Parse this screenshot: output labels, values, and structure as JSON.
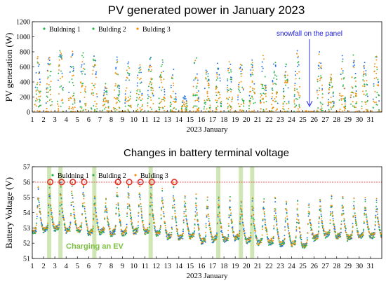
{
  "chart_data": [
    {
      "type": "scatter",
      "title": "PV generated power in January 2023",
      "xlabel": "2023 January",
      "ylabel": "PV generation (W)",
      "xlim": [
        1,
        32
      ],
      "ylim": [
        0,
        1200
      ],
      "yticks": [
        0,
        200,
        400,
        600,
        800,
        1000,
        1200
      ],
      "xticks": [
        1,
        2,
        3,
        4,
        5,
        6,
        7,
        8,
        9,
        10,
        11,
        12,
        13,
        14,
        15,
        16,
        17,
        18,
        19,
        20,
        21,
        22,
        23,
        24,
        25,
        26,
        27,
        28,
        29,
        30,
        31
      ],
      "grid": false,
      "legend": "top-left",
      "series": [
        {
          "name": "Buldning 1",
          "color": "#1f6fe0"
        },
        {
          "name": "Bulding 2",
          "color": "#2db34a"
        },
        {
          "name": "Bulding 3",
          "color": "#f2900a"
        }
      ],
      "daily_peak_W": [
        {
          "day": 1,
          "peak": 770
        },
        {
          "day": 2,
          "peak": 760
        },
        {
          "day": 3,
          "peak": 900
        },
        {
          "day": 4,
          "peak": 870
        },
        {
          "day": 5,
          "peak": 840
        },
        {
          "day": 6,
          "peak": 800
        },
        {
          "day": 7,
          "peak": 380
        },
        {
          "day": 8,
          "peak": 740
        },
        {
          "day": 9,
          "peak": 720
        },
        {
          "day": 10,
          "peak": 710
        },
        {
          "day": 11,
          "peak": 800
        },
        {
          "day": 12,
          "peak": 740
        },
        {
          "day": 13,
          "peak": 590
        },
        {
          "day": 14,
          "peak": 230
        },
        {
          "day": 15,
          "peak": 790
        },
        {
          "day": 16,
          "peak": 620
        },
        {
          "day": 17,
          "peak": 700
        },
        {
          "day": 18,
          "peak": 700
        },
        {
          "day": 19,
          "peak": 720
        },
        {
          "day": 20,
          "peak": 710
        },
        {
          "day": 21,
          "peak": 760
        },
        {
          "day": 22,
          "peak": 780
        },
        {
          "day": 23,
          "peak": 640
        },
        {
          "day": 24,
          "peak": 820
        },
        {
          "day": 25,
          "peak": 20
        },
        {
          "day": 26,
          "peak": 840
        },
        {
          "day": 27,
          "peak": 500
        },
        {
          "day": 28,
          "peak": 760
        },
        {
          "day": 29,
          "peak": 780
        },
        {
          "day": 30,
          "peak": 720
        },
        {
          "day": 31,
          "peak": 780
        }
      ],
      "annotations": [
        {
          "text": "snowfall on the panel",
          "day": 25.5,
          "color": "#1a1adc"
        }
      ]
    },
    {
      "type": "scatter",
      "title": "Changes in battery terminal voltage",
      "xlabel": "2023 January",
      "ylabel": "Battery Voltage (V)",
      "xlim": [
        1,
        32
      ],
      "ylim": [
        51,
        57
      ],
      "yticks": [
        51,
        52,
        53,
        54,
        55,
        56,
        57
      ],
      "xticks": [
        1,
        2,
        3,
        4,
        5,
        6,
        7,
        8,
        9,
        10,
        11,
        12,
        13,
        14,
        15,
        16,
        17,
        18,
        19,
        20,
        21,
        22,
        23,
        24,
        25,
        26,
        27,
        28,
        29,
        30,
        31
      ],
      "grid": false,
      "legend": "top",
      "series": [
        {
          "name": "Buldning 1",
          "color": "#1f6fe0"
        },
        {
          "name": "Bulding 2",
          "color": "#2db34a"
        },
        {
          "name": "Bulding 3",
          "color": "#f2900a"
        }
      ],
      "reference_line": {
        "y": 56,
        "color": "#e23030"
      },
      "full_charge_markers_day": [
        2.6,
        3.6,
        4.6,
        5.6,
        8.6,
        9.6,
        10.6,
        11.6,
        13.6
      ],
      "ev_charging_days": [
        2.5,
        3.5,
        6.5,
        11.5,
        17.5,
        19.5,
        20.5
      ],
      "daily_peak_V": [
        55.8,
        55.9,
        56.0,
        56.0,
        56.0,
        55.2,
        55.1,
        56.0,
        56.0,
        56.0,
        56.0,
        55.6,
        56.0,
        55.3,
        55.2,
        55.1,
        55.1,
        55.1,
        55.0,
        55.0,
        55.0,
        55.0,
        54.9,
        54.8,
        54.6,
        55.0,
        55.1,
        55.0,
        55.0,
        55.0,
        54.9
      ],
      "daily_min_V": [
        52.6,
        52.7,
        52.8,
        52.7,
        52.7,
        52.5,
        52.6,
        52.5,
        52.5,
        52.6,
        52.6,
        52.5,
        52.3,
        52.2,
        52.3,
        52.0,
        52.1,
        52.1,
        52.2,
        52.0,
        51.9,
        51.9,
        51.8,
        51.8,
        51.7,
        52.2,
        52.4,
        52.3,
        52.2,
        52.3,
        52.3
      ],
      "annotations": [
        {
          "text": "Charging an EV",
          "color": "#7cc142"
        }
      ]
    }
  ]
}
